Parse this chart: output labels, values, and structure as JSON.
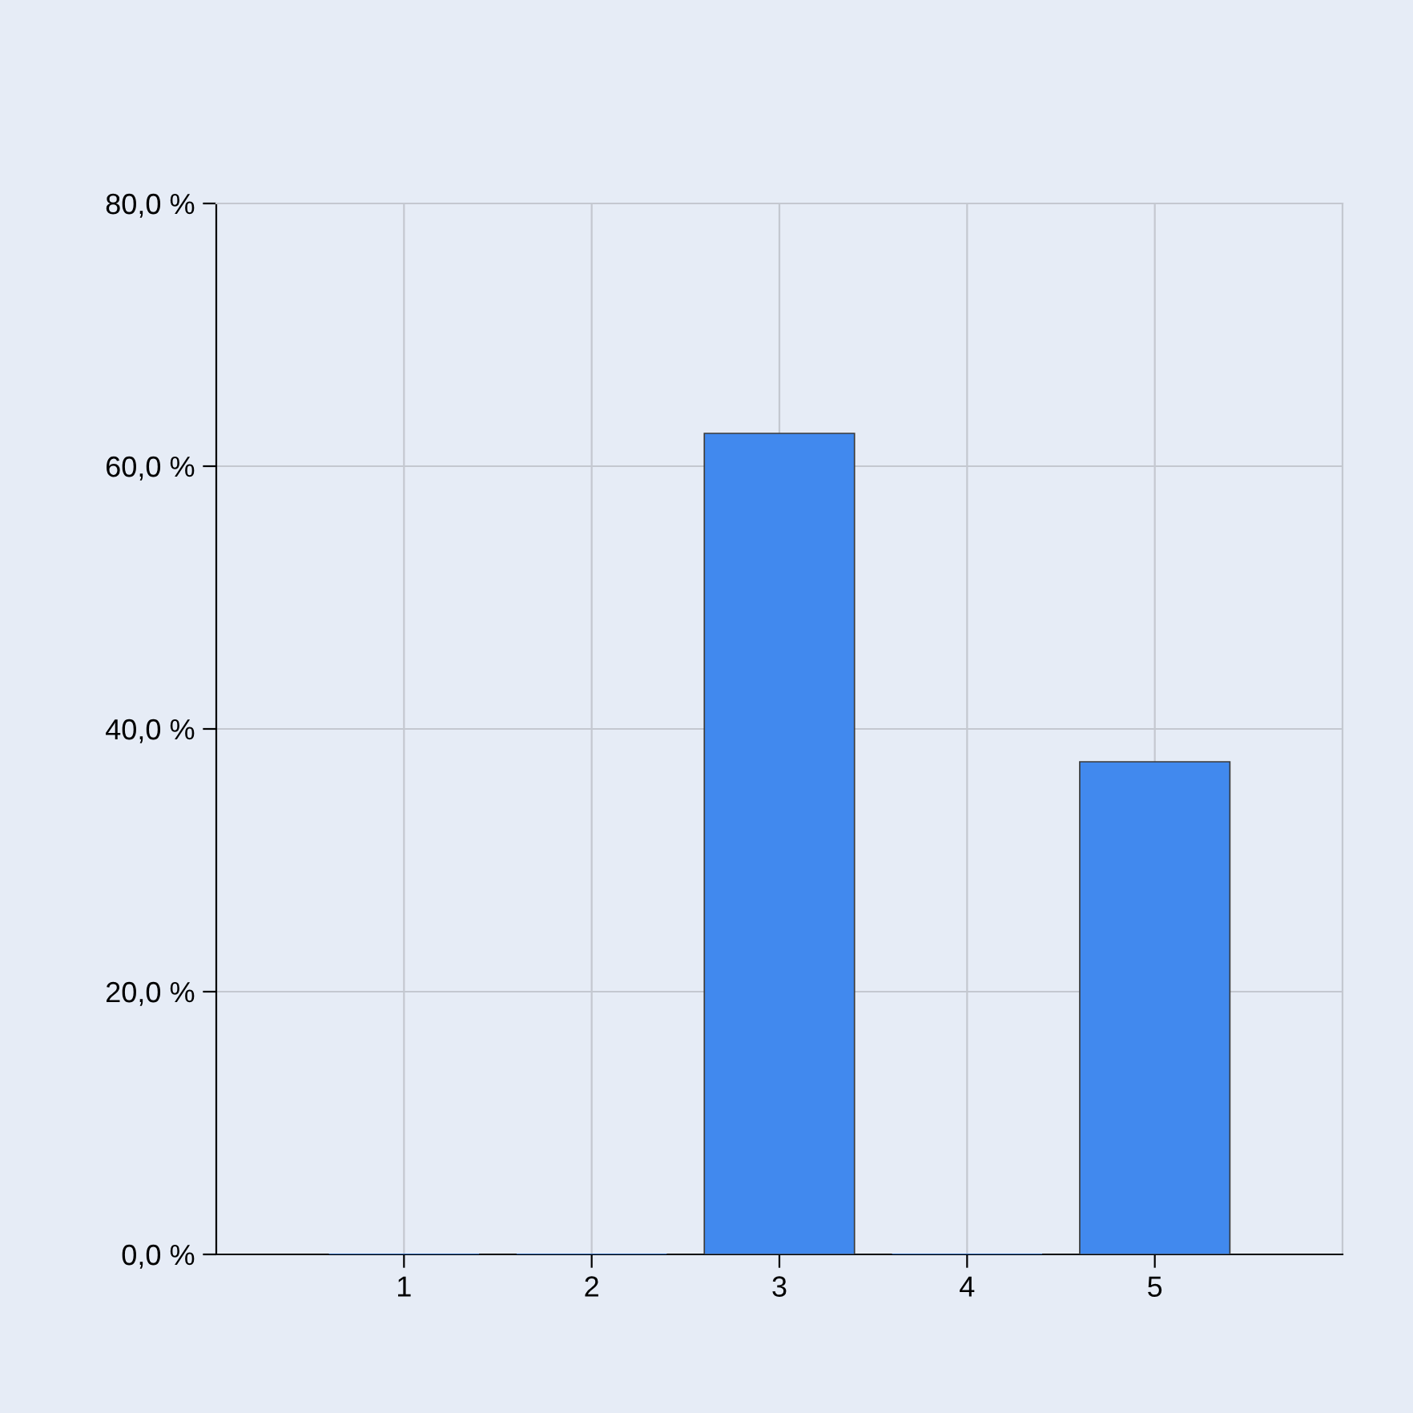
{
  "chart_data": {
    "type": "bar",
    "x": [
      1,
      2,
      3,
      4,
      5
    ],
    "values": [
      0,
      0,
      62.5,
      0,
      37.5
    ],
    "color": "#4189ee",
    "xlim": [
      0,
      6
    ],
    "xticks": [
      1,
      2,
      3,
      4,
      5
    ],
    "ylim": [
      0,
      80
    ],
    "yticks": [
      {
        "value": 0,
        "label": "0,0 %"
      },
      {
        "value": 20,
        "label": "20,0 %"
      },
      {
        "value": 40,
        "label": "40,0 %"
      },
      {
        "value": 60,
        "label": "60,0 %"
      },
      {
        "value": 80,
        "label": "80,0 %"
      }
    ],
    "grid": true
  }
}
